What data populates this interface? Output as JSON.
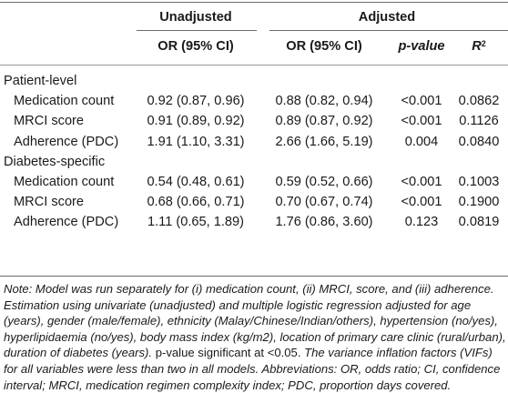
{
  "header": {
    "group1": "Unadjusted",
    "group2": "Adjusted",
    "columns": [
      "OR (95% CI)",
      "OR (95% CI)",
      "p-value",
      "R",
      "2"
    ]
  },
  "sections": [
    {
      "title": "Patient-level",
      "rows": [
        {
          "label": "Medication count",
          "cells": [
            "0.92 (0.87, 0.96)",
            "0.88 (0.82, 0.94)",
            "<0.001",
            "0.0862"
          ]
        },
        {
          "label": "MRCI score",
          "cells": [
            "0.91 (0.89, 0.92)",
            "0.89 (0.87, 0.92)",
            "<0.001",
            "0.1126"
          ]
        },
        {
          "label": "Adherence (PDC)",
          "cells": [
            "1.91 (1.10, 3.31)",
            "2.66 (1.66, 5.19)",
            "0.004",
            "0.0840"
          ]
        }
      ]
    },
    {
      "title": "Diabetes-specific",
      "rows": [
        {
          "label": "Medication count",
          "cells": [
            "0.54 (0.48, 0.61)",
            "0.59 (0.52, 0.66)",
            "<0.001",
            "0.1003"
          ]
        },
        {
          "label": "MRCI score",
          "cells": [
            "0.68 (0.66, 0.71)",
            "0.70 (0.67, 0.74)",
            "<0.001",
            "0.1900"
          ]
        },
        {
          "label": "Adherence (PDC)",
          "cells": [
            "1.11 (0.65, 1.89)",
            "1.76 (0.86, 3.60)",
            "0.123",
            "0.0819"
          ]
        }
      ]
    }
  ],
  "note": {
    "part1": "Note: Model was run separately for (i) medication count, (ii) MRCI, score, and (iii) adherence. Estimation using univariate (unadjusted) and multiple logistic regression adjusted for age (years), gender (male/female), ethnicity (Malay/Chinese/Indian/others), hypertension (no/yes), hyperlipidaemia (no/yes), body mass index (kg/m2), location of primary care clinic (rural/urban), duration of diabetes (years).",
    "part2": "p-value significant at <0.05.",
    "part3": "The variance inflation factors (VIFs) for all variables were less than two in all models. Abbreviations: OR, odds ratio; CI, confidence interval; MRCI, medication regimen complexity index; PDC, proportion days covered."
  }
}
